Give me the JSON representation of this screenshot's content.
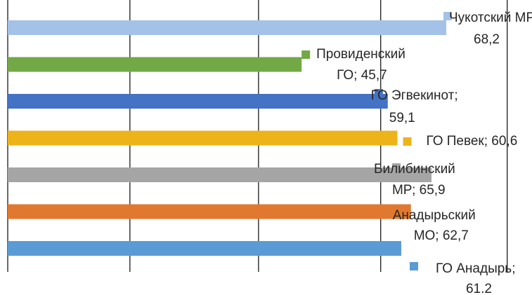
{
  "chart_data": {
    "type": "bar",
    "orientation": "horizontal",
    "xlim": [
      0,
      75
    ],
    "grid": true,
    "legend": "none",
    "categories": [
      "Чукотский МР",
      "Провиденский ГО",
      "ГО Эгвекинот",
      "ГО Певек",
      "Билибинский МР",
      "Анадырьский МО",
      "ГО Анадырь"
    ],
    "values": [
      68.2,
      45.7,
      59.1,
      60.6,
      65.9,
      62.7,
      61.2
    ],
    "colors": [
      "#a4c2e8",
      "#72a845",
      "#4472c4",
      "#edb41a",
      "#a5a5a5",
      "#e1782f",
      "#5b9bd5"
    ],
    "data_labels": [
      [
        "Чукотский МР;",
        "68,2"
      ],
      [
        "Провиденский",
        "ГО; 45,7"
      ],
      [
        "ГО Эгвекинот;",
        "59,1"
      ],
      [
        "ГО Певек; 60,6"
      ],
      [
        "Билибинский",
        "МР; 65,9"
      ],
      [
        "Анадырьский",
        "МО; 62,7"
      ],
      [
        "ГО Анадырь;",
        "61.2"
      ]
    ]
  }
}
